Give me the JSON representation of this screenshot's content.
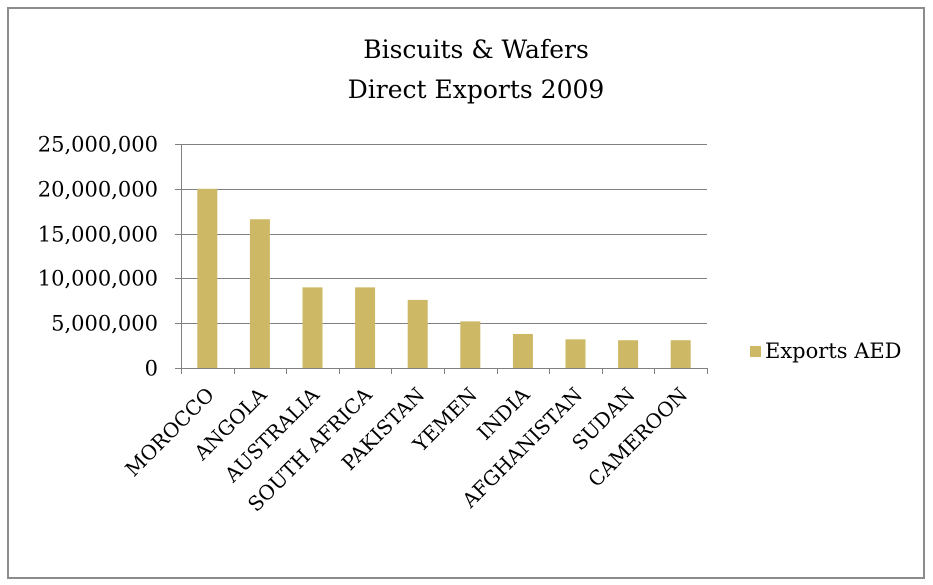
{
  "chart_data": {
    "type": "bar",
    "title": "Biscuits & Wafers",
    "subtitle": "Direct Exports 2009",
    "xlabel": "",
    "ylabel": "",
    "categories": [
      "MOROCCO",
      "ANGOLA",
      "AUSTRALIA",
      "SOUTH AFRICA",
      "PAKISTAN",
      "YEMEN",
      "INDIA",
      "AFGHANISTAN",
      "SUDAN",
      "CAMEROON"
    ],
    "series": [
      {
        "name": "Exports AED",
        "color": "#cdb866",
        "values": [
          20000000,
          16600000,
          9000000,
          9000000,
          7600000,
          5200000,
          3800000,
          3200000,
          3100000,
          3100000
        ]
      }
    ],
    "ylim": [
      0,
      25000000
    ],
    "yticks": [
      0,
      5000000,
      10000000,
      15000000,
      20000000,
      25000000
    ],
    "ytick_labels": [
      "0",
      "5,000,000",
      "10,000,000",
      "15,000,000",
      "20,000,000",
      "25,000,000"
    ],
    "grid": true,
    "legend_position": "right"
  },
  "colors": {
    "bar": "#cdb866",
    "gridline": "#808080",
    "frame": "#8c8c8c"
  }
}
